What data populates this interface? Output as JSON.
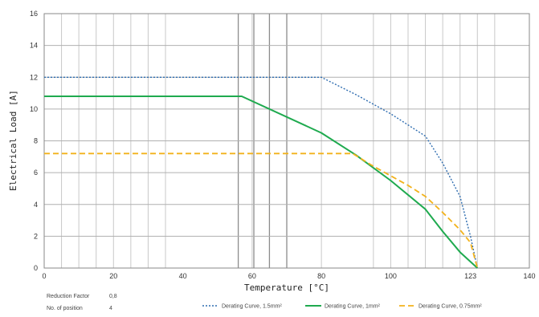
{
  "chart_data": {
    "type": "line",
    "xlabel": "Temperature [°C]",
    "ylabel": "Electrical Load [A]",
    "xlim": [
      0,
      140
    ],
    "ylim": [
      0,
      16
    ],
    "xticks": [
      0,
      20,
      40,
      60,
      80,
      100,
      123,
      140
    ],
    "xtick_labels": [
      "0",
      "20",
      "40",
      "60",
      "80",
      "100",
      "123",
      "140"
    ],
    "yticks": [
      0,
      2,
      4,
      6,
      8,
      10,
      12,
      14,
      16
    ],
    "grid": true,
    "legend_position": "bottom",
    "series": [
      {
        "name": "Derating Curve, 1.5mm²",
        "color": "#2f6db0",
        "style": "dotted",
        "x": [
          0,
          60,
          80,
          90,
          100,
          110,
          115,
          120,
          123,
          125
        ],
        "y": [
          12,
          12,
          12,
          10.9,
          9.7,
          8.3,
          6.6,
          4.5,
          2.0,
          0
        ]
      },
      {
        "name": "Derating Curve, 1mm²",
        "color": "#1faa4f",
        "style": "solid",
        "x": [
          0,
          40,
          57,
          80,
          90,
          100,
          110,
          115,
          120,
          123,
          125
        ],
        "y": [
          10.8,
          10.8,
          10.8,
          8.5,
          7.1,
          5.5,
          3.7,
          2.3,
          1.0,
          0.4,
          0
        ]
      },
      {
        "name": "Derating Curve, 0.75mm²",
        "color": "#f2b21b",
        "style": "dashed",
        "x": [
          0,
          60,
          89,
          95,
          100,
          105,
          110,
          115,
          120,
          123,
          125
        ],
        "y": [
          7.2,
          7.2,
          7.2,
          6.4,
          5.8,
          5.2,
          4.5,
          3.5,
          2.4,
          1.6,
          0
        ]
      }
    ]
  },
  "info": {
    "reduction_factor_label": "Reduction Factor",
    "reduction_factor_value": "0,8",
    "positions_label": "No. of position",
    "positions_value": "4"
  }
}
